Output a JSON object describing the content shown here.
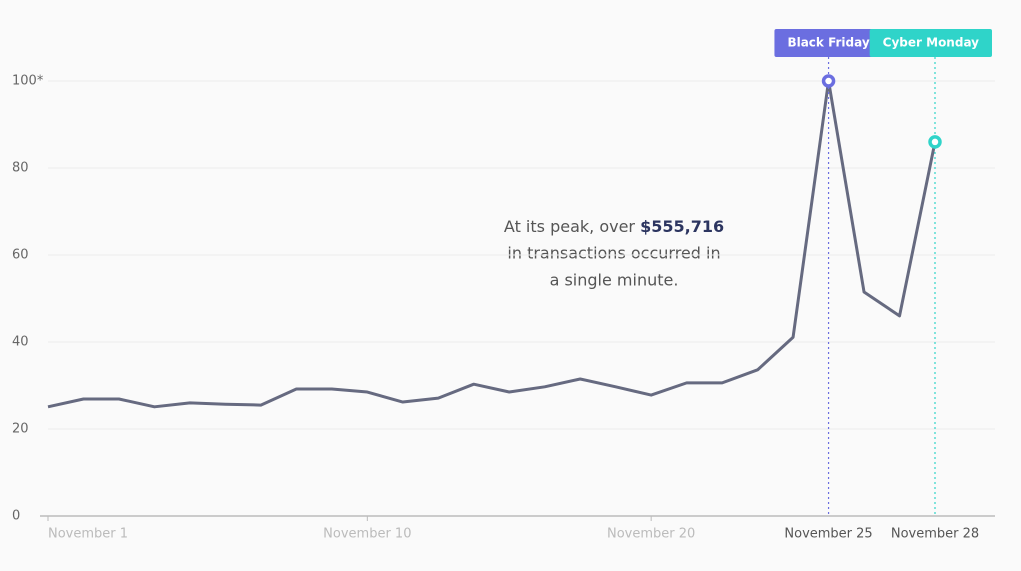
{
  "chart_data": {
    "type": "line",
    "categories": [
      "November 1",
      null,
      null,
      null,
      null,
      null,
      null,
      null,
      null,
      "November 10",
      null,
      null,
      null,
      null,
      null,
      null,
      null,
      "November 20",
      null,
      null,
      null,
      null,
      "November 25",
      null,
      null,
      "November 28"
    ],
    "values": [
      25.1,
      26.9,
      26.9,
      25.1,
      26.0,
      25.7,
      25.5,
      29.2,
      29.2,
      28.5,
      26.2,
      27.1,
      30.3,
      28.5,
      29.7,
      31.5,
      29.7,
      27.8,
      30.6,
      30.6,
      33.6,
      41.1,
      100,
      51.5,
      46.0,
      86.0
    ],
    "color": "#666a80",
    "ylim": [
      0,
      100
    ],
    "yticks": [
      0,
      20,
      40,
      60,
      80,
      {
        "value": 100,
        "label": "100*"
      }
    ],
    "grid": true,
    "annotation": {
      "prefix": "At its peak, over ",
      "highlight": "$555,716",
      "lines": [
        "in transactions occurred in",
        "a single minute."
      ]
    },
    "events": [
      {
        "label": "Black Friday",
        "category": "November 25",
        "color": "#6b6ee0"
      },
      {
        "label": "Cyber Monday",
        "category": "November 28",
        "color": "#2fd4c9"
      }
    ]
  }
}
